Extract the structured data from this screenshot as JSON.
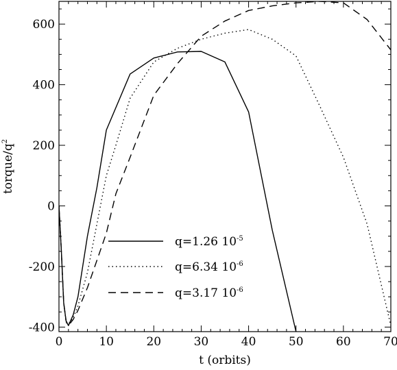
{
  "chart_data": {
    "type": "line",
    "xlabel": "t (orbits)",
    "ylabel": {
      "base": "torque/q",
      "superscript": "2"
    },
    "xlim": [
      0,
      70
    ],
    "ylim": [
      -415,
      675
    ],
    "xticks": [
      0,
      10,
      20,
      30,
      40,
      50,
      60,
      70
    ],
    "yticks": [
      -400,
      -200,
      0,
      200,
      400,
      600
    ],
    "grid": false,
    "legend_position": "lower-left (inside axes)",
    "series": [
      {
        "name": {
          "prefix": "q=1.26",
          "suffix": " 10",
          "exponent": "-5"
        },
        "dash": "solid",
        "x": [
          0,
          0.5,
          1,
          1.5,
          2,
          3,
          4,
          6,
          8,
          10,
          15,
          20,
          25,
          30,
          35,
          40,
          45,
          50
        ],
        "y": [
          0,
          -150,
          -320,
          -380,
          -395,
          -360,
          -300,
          -100,
          60,
          250,
          435,
          488,
          508,
          510,
          475,
          310,
          -80,
          -415
        ]
      },
      {
        "name": {
          "prefix": "q=6.34",
          "suffix": " 10",
          "exponent": "-6"
        },
        "dash": "dotted",
        "x": [
          0,
          0.5,
          1,
          1.5,
          2,
          3,
          4,
          6,
          8,
          10,
          12,
          15,
          20,
          25,
          30,
          35,
          40,
          45,
          50,
          55,
          60,
          65,
          70
        ],
        "y": [
          0,
          -150,
          -320,
          -385,
          -390,
          -370,
          -330,
          -220,
          -60,
          100,
          200,
          355,
          475,
          520,
          550,
          570,
          582,
          550,
          495,
          330,
          160,
          -60,
          -395
        ]
      },
      {
        "name": {
          "prefix": "q=3.17",
          "suffix": " 10",
          "exponent": "-6"
        },
        "dash": "dashed",
        "x": [
          0,
          0.5,
          1,
          1.5,
          2,
          3,
          4,
          6,
          8,
          10,
          12,
          15,
          20,
          25,
          30,
          35,
          40,
          45,
          50,
          55,
          60,
          65,
          70
        ],
        "y": [
          0,
          -150,
          -320,
          -380,
          -395,
          -375,
          -345,
          -270,
          -180,
          -90,
          40,
          160,
          365,
          470,
          560,
          610,
          645,
          660,
          670,
          675,
          670,
          615,
          515
        ]
      }
    ]
  }
}
